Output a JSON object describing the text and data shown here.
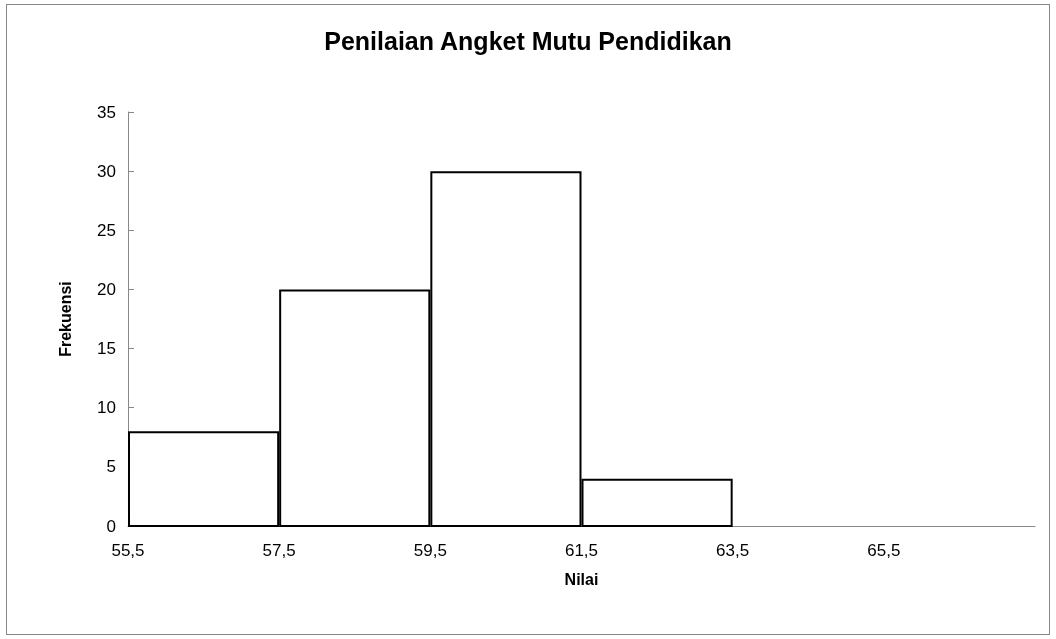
{
  "chart_data": {
    "type": "histogram",
    "title": "Penilaian Angket Mutu Pendidikan",
    "xlabel": "Nilai",
    "ylabel": "Frekuensi",
    "bins": [
      55.5,
      57.5,
      59.5,
      61.5,
      63.5,
      65.5,
      67.5
    ],
    "values": [
      8,
      20,
      30,
      4,
      0,
      0
    ],
    "color": "#ffffff",
    "xlim": [
      55.5,
      67.5
    ],
    "xticks": [
      {
        "value": 55.5,
        "label": "55,5"
      },
      {
        "value": 57.5,
        "label": "57,5"
      },
      {
        "value": 59.5,
        "label": "59,5"
      },
      {
        "value": 61.5,
        "label": "61,5"
      },
      {
        "value": 63.5,
        "label": "63,5"
      },
      {
        "value": 65.5,
        "label": "65,5"
      }
    ],
    "ylim": [
      0,
      35
    ],
    "yticks": [
      0,
      5,
      10,
      15,
      20,
      25,
      30,
      35
    ],
    "grid": false,
    "legend": false
  }
}
